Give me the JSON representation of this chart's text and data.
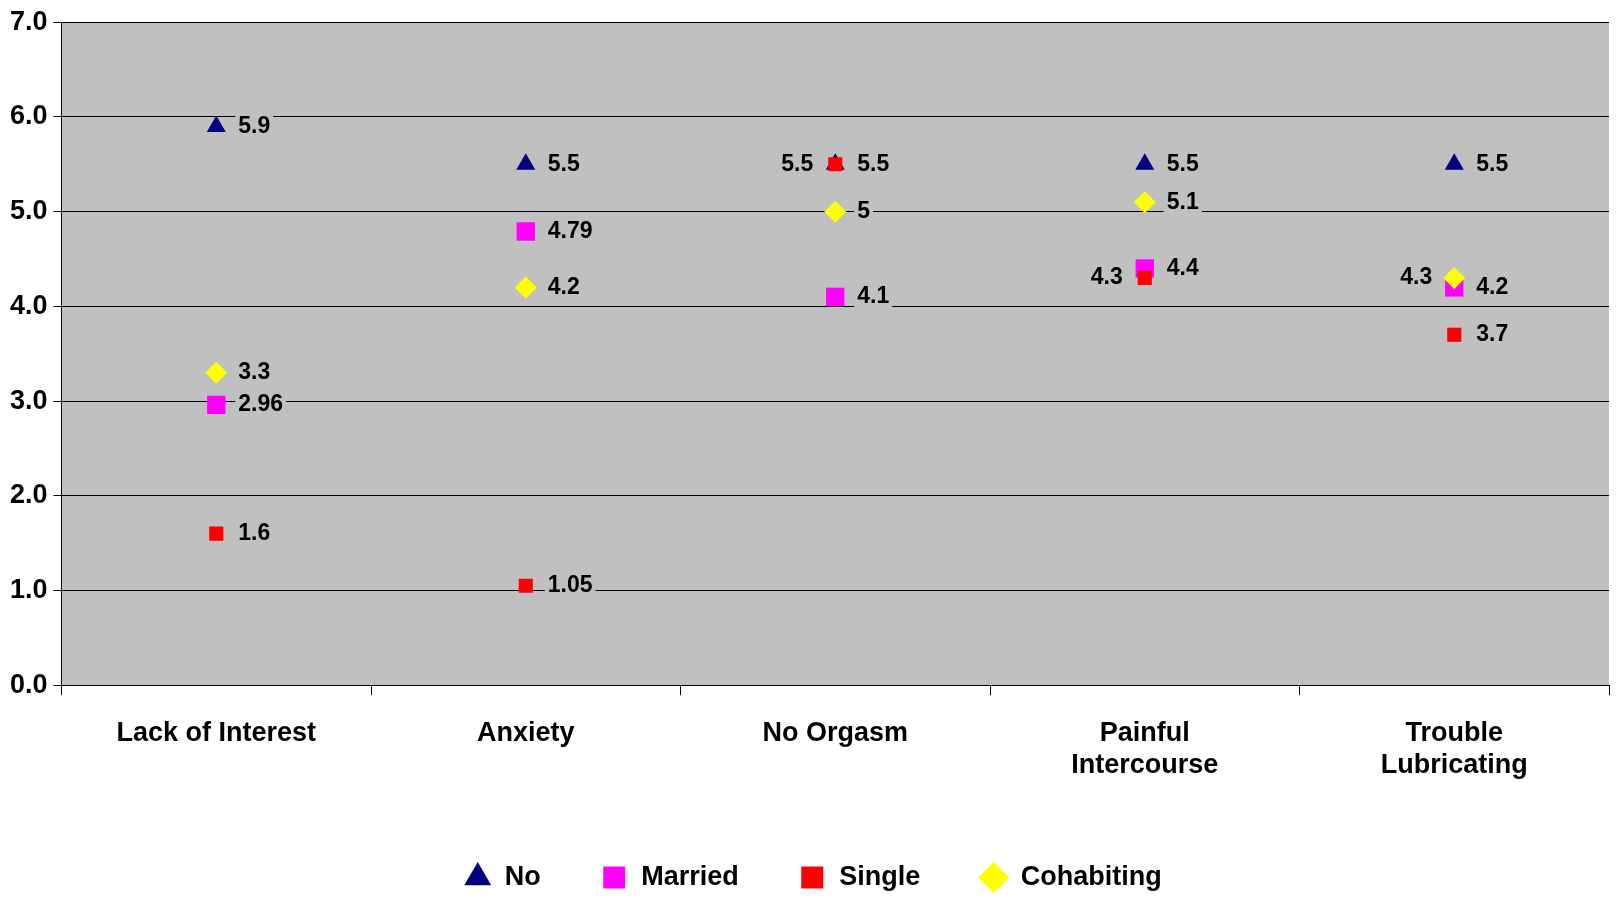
{
  "chart_data": {
    "type": "scatter",
    "categories": [
      "Lack of Interest",
      "Anxiety",
      "No Orgasm",
      "Painful Intercourse",
      "Trouble Lubricating"
    ],
    "series": [
      {
        "name": "No",
        "color": "#000080",
        "marker": "triangle",
        "values": [
          5.9,
          5.5,
          5.5,
          5.5,
          5.5
        ]
      },
      {
        "name": "Married",
        "color": "#ff00ff",
        "marker": "square",
        "values": [
          2.96,
          4.79,
          4.1,
          4.4,
          4.2
        ]
      },
      {
        "name": "Single",
        "color": "#ff0000",
        "marker": "square",
        "values": [
          1.6,
          1.05,
          5.5,
          4.3,
          3.7
        ]
      },
      {
        "name": "Cohabiting",
        "color": "#ffff00",
        "marker": "diamond",
        "values": [
          3.3,
          4.2,
          5,
          5.1,
          4.3
        ]
      }
    ],
    "ylim": [
      0,
      7
    ],
    "yticks": [
      {
        "value": 0,
        "label": "0.0"
      },
      {
        "value": 1,
        "label": "1.0"
      },
      {
        "value": 2,
        "label": "2.0"
      },
      {
        "value": 3,
        "label": "3.0"
      },
      {
        "value": 4,
        "label": "4.0"
      },
      {
        "value": 5,
        "label": "5.0"
      },
      {
        "value": 6,
        "label": "6.0"
      },
      {
        "value": 7,
        "label": "7.0"
      }
    ],
    "grid": "y",
    "legend": "bottom",
    "data_labels": true
  }
}
